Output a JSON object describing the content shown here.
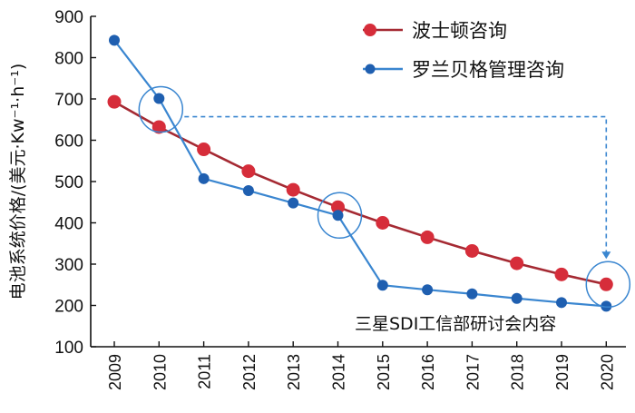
{
  "chart_data": {
    "type": "line",
    "ylabel": "电池系统价格/(美元·Kw⁻¹·h⁻¹)",
    "xlabel": "",
    "ylim": [
      100,
      900
    ],
    "yticks": [
      100,
      200,
      300,
      400,
      500,
      600,
      700,
      800,
      900
    ],
    "categories": [
      "2009",
      "2010",
      "2011",
      "2012",
      "2013",
      "2014",
      "2015",
      "2016",
      "2017",
      "2018",
      "2019",
      "2020"
    ],
    "legend_position": "top-right",
    "series": [
      {
        "name": "波士顿咨询",
        "color": "#d62d3a",
        "line_color": "#a52a33",
        "marker": "large-circle",
        "values": [
          693,
          632,
          578,
          525,
          480,
          438,
          400,
          365,
          332,
          302,
          275,
          251
        ]
      },
      {
        "name": "罗兰贝格管理咨询",
        "color": "#1f5fb0",
        "line_color": "#3a86d0",
        "marker": "small-circle",
        "values": [
          842,
          701,
          507,
          478,
          448,
          418,
          249,
          238,
          228,
          217,
          207,
          198
        ]
      }
    ],
    "annotations": {
      "circled_points": [
        {
          "series": 1,
          "category": "2010"
        },
        {
          "series": 1,
          "category": "2014"
        },
        {
          "series": 0,
          "category": "2020"
        }
      ],
      "dashed_arrow": {
        "from_category": "2010",
        "to_category": "2020",
        "level": 701,
        "color": "#3a86d0"
      },
      "note": "三星SDI工信部研讨会内容"
    }
  }
}
